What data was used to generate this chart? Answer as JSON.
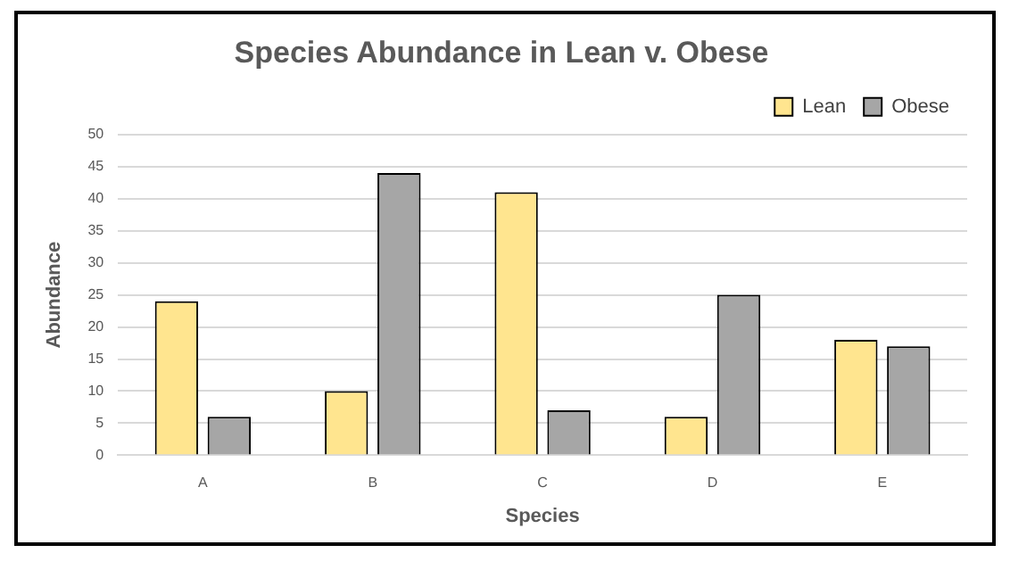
{
  "chart_data": {
    "type": "bar",
    "title": "Species Abundance in Lean v. Obese",
    "xlabel": "Species",
    "ylabel": "Abundance",
    "categories": [
      "A",
      "B",
      "C",
      "D",
      "E"
    ],
    "series": [
      {
        "name": "Lean",
        "color": "#ffe58f",
        "values": [
          24,
          10,
          41,
          6,
          18
        ]
      },
      {
        "name": "Obese",
        "color": "#a6a6a6",
        "values": [
          6,
          44,
          7,
          25,
          17
        ]
      }
    ],
    "ylim": [
      0,
      50
    ],
    "yticks": [
      0,
      5,
      10,
      15,
      20,
      25,
      30,
      35,
      40,
      45,
      50
    ],
    "grid": "y",
    "legend": "top right"
  }
}
